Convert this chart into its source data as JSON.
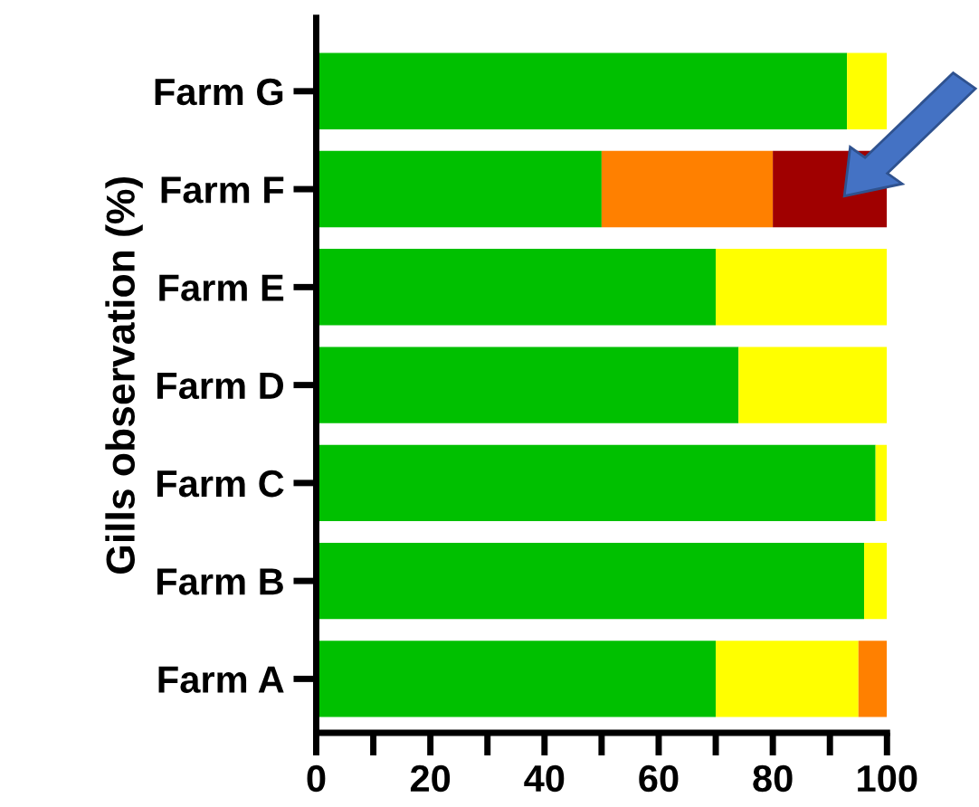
{
  "chart_data": {
    "type": "bar",
    "orientation": "horizontal",
    "stacked": true,
    "ylabel": "Gills observation (%)",
    "categories": [
      "Farm G",
      "Farm F",
      "Farm E",
      "Farm D",
      "Farm C",
      "Farm B",
      "Farm A"
    ],
    "series": [
      {
        "color": "#00c000",
        "values": [
          93,
          50,
          70,
          74,
          98,
          96,
          70
        ]
      },
      {
        "color": "#ffff00",
        "values": [
          7,
          0,
          30,
          26,
          2,
          4,
          25
        ]
      },
      {
        "color": "#ff8000",
        "values": [
          0,
          30,
          0,
          0,
          0,
          0,
          5
        ]
      },
      {
        "color": "#a00000",
        "values": [
          0,
          20,
          0,
          0,
          0,
          0,
          0
        ]
      }
    ],
    "xlim": [
      0,
      100
    ],
    "xticks": [
      0,
      {
        "value": 10,
        "label": null
      },
      20,
      {
        "value": 30,
        "label": null
      },
      40,
      {
        "value": 50,
        "label": null
      },
      60,
      {
        "value": 70,
        "label": null
      },
      80,
      {
        "value": 90,
        "label": null
      },
      100
    ],
    "grid": false,
    "legend": false
  }
}
